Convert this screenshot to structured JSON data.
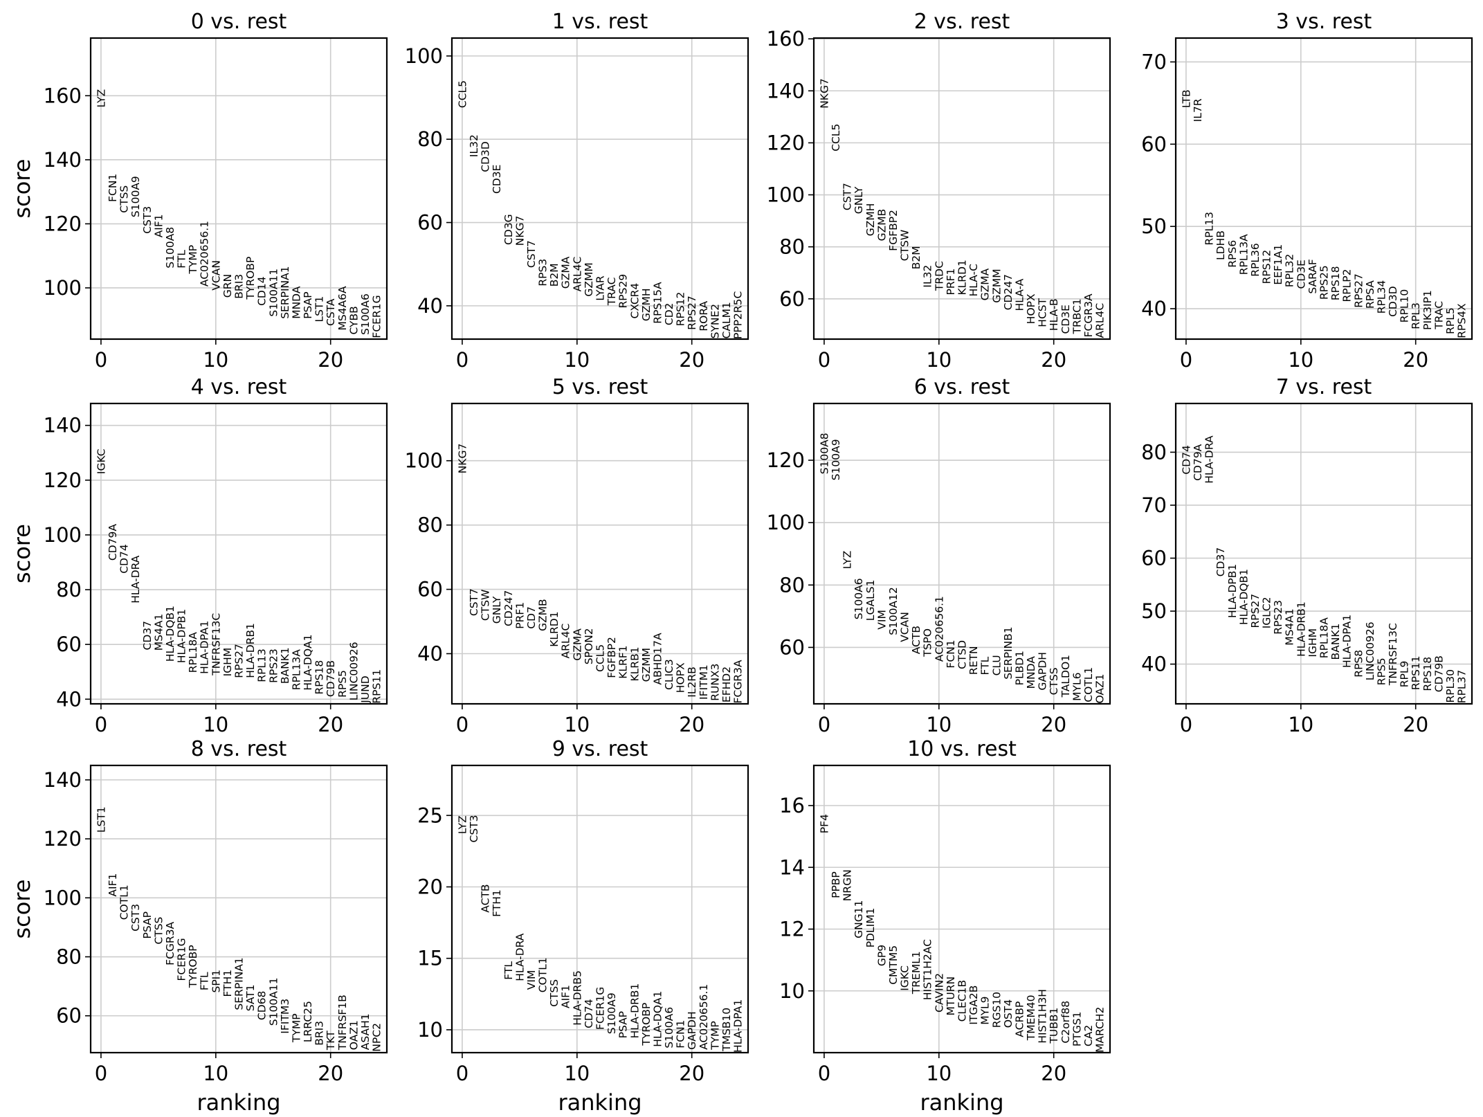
{
  "figure": {
    "xlabel": "ranking",
    "ylabel": "score"
  },
  "chart_data": [
    {
      "type": "scatter",
      "title": "0 vs. rest",
      "xlabel": "",
      "ylabel": "score",
      "xlim": [
        -0.9,
        24.9
      ],
      "ylim": [
        84,
        178
      ],
      "xticks": [
        0,
        10,
        20
      ],
      "yticks": [
        100,
        120,
        140,
        160
      ],
      "grid": true,
      "genes": [
        "LYZ",
        "FCN1",
        "CTSS",
        "S100A9",
        "CST3",
        "AIF1",
        "S100A8",
        "FTL",
        "TYMP",
        "AC020656.1",
        "VCAN",
        "GRN",
        "BRI3",
        "TYROBP",
        "CD14",
        "S100A11",
        "SERPINA1",
        "MNDA",
        "PSAP",
        "LST1",
        "CSTA",
        "MS4A6A",
        "CYBB",
        "S100A6",
        "FCER1G"
      ],
      "scores": [
        156.3,
        126.8,
        123.4,
        122.0,
        116.9,
        115.7,
        106.1,
        106.1,
        104.4,
        100.4,
        99.2,
        96.9,
        96.6,
        96.4,
        94.4,
        91.0,
        90.3,
        90.3,
        90.3,
        89.3,
        88.1,
        86.7,
        85.4,
        85.3,
        84.3
      ]
    },
    {
      "type": "scatter",
      "title": "1 vs. rest",
      "xlabel": "",
      "ylabel": "",
      "xlim": [
        -0.9,
        24.9
      ],
      "ylim": [
        32,
        104.3
      ],
      "xticks": [
        0,
        10,
        20
      ],
      "yticks": [
        40,
        60,
        80,
        100
      ],
      "grid": true,
      "genes": [
        "CCL5",
        "IL32",
        "CD3D",
        "CD3E",
        "CD3G",
        "NKG7",
        "CST7",
        "RPS3",
        "B2M",
        "GZMA",
        "ARL4C",
        "GZMM",
        "LYAR",
        "TRAC",
        "RPS29",
        "CXCR4",
        "GZMH",
        "RPS15A",
        "CD2",
        "RPS12",
        "RPS27",
        "RORA",
        "SYNE2",
        "CALM1",
        "PPP2R5C"
      ],
      "scores": [
        87.5,
        75.7,
        72.1,
        66.9,
        54.6,
        54.4,
        49.1,
        44.7,
        44.6,
        44.1,
        43.4,
        42.2,
        41.2,
        40.1,
        39.4,
        36.9,
        36.3,
        35.7,
        35.3,
        35.1,
        34.2,
        33.9,
        32.1,
        32.1,
        32.0
      ]
    },
    {
      "type": "scatter",
      "title": "2 vs. rest",
      "xlabel": "",
      "ylabel": "",
      "xlim": [
        -0.9,
        24.9
      ],
      "ylim": [
        44.5,
        160.3
      ],
      "xticks": [
        0,
        10,
        20
      ],
      "yticks": [
        60,
        80,
        100,
        120,
        140,
        160
      ],
      "grid": true,
      "genes": [
        "NKG7",
        "CCL5",
        "CST7",
        "GNLY",
        "GZMH",
        "GZMB",
        "FGFBP2",
        "CTSW",
        "B2M",
        "IL32",
        "TRDC",
        "PRF1",
        "KLRD1",
        "HLA-C",
        "GZMA",
        "GZMM",
        "CD247",
        "HLA-A",
        "HOPX",
        "HCST",
        "HLA-B",
        "CD3E",
        "TRBC1",
        "FCGR3A",
        "ARL4C"
      ],
      "scores": [
        133.2,
        116.7,
        94.0,
        92.6,
        84.1,
        82.2,
        78.4,
        74.5,
        71.3,
        64.3,
        63.1,
        61.4,
        61.4,
        60.9,
        59.3,
        58.4,
        55.6,
        55.3,
        50.3,
        49.1,
        47.7,
        46.5,
        46.5,
        45.2,
        44.9
      ]
    },
    {
      "type": "scatter",
      "title": "3 vs. rest",
      "xlabel": "",
      "ylabel": "",
      "xlim": [
        -0.9,
        24.9
      ],
      "ylim": [
        36.3,
        72.9
      ],
      "xticks": [
        0,
        10,
        20
      ],
      "yticks": [
        40,
        50,
        60,
        70
      ],
      "grid": true,
      "genes": [
        "LTB",
        "IL7R",
        "RPL13",
        "LDHB",
        "RPS6",
        "RPL13A",
        "RPL36",
        "RPS12",
        "EEF1A1",
        "RPL32",
        "CD3E",
        "SARAF",
        "RPS25",
        "RPS18",
        "RPLP2",
        "RPS27",
        "RPSA",
        "RPL34",
        "CD3D",
        "RPL10",
        "RPL3",
        "PIK3IP1",
        "TRAC",
        "RPL5",
        "RPS4X"
      ],
      "scores": [
        64.4,
        62.7,
        47.7,
        45.9,
        45.0,
        44.1,
        43.9,
        43.0,
        42.9,
        42.6,
        42.4,
        41.8,
        41.1,
        41.0,
        40.8,
        40.1,
        40.0,
        39.4,
        39.0,
        38.3,
        37.5,
        37.4,
        37.5,
        36.9,
        36.4
      ]
    },
    {
      "type": "scatter",
      "title": "4 vs. rest",
      "xlabel": "",
      "ylabel": "score",
      "xlim": [
        -0.9,
        24.9
      ],
      "ylim": [
        38.3,
        148
      ],
      "xticks": [
        0,
        10,
        20
      ],
      "yticks": [
        40,
        60,
        80,
        100,
        120,
        140
      ],
      "grid": true,
      "genes": [
        "IGKC",
        "CD79A",
        "CD74",
        "HLA-DRA",
        "CD37",
        "MS4A1",
        "HLA-DQB1",
        "HLA-DPB1",
        "RPL18A",
        "HLA-DPA1",
        "TNFRSF13C",
        "IGHM",
        "RPS27",
        "HLA-DRB1",
        "RPL13",
        "RPS23",
        "BANK1",
        "RPL13A",
        "HLA-DQA1",
        "RPS18",
        "CD79B",
        "RPS5",
        "LINC00926",
        "JUND",
        "RPS11"
      ],
      "scores": [
        122.2,
        90.6,
        85.9,
        75.0,
        57.9,
        57.7,
        53.7,
        53.2,
        49.6,
        49.2,
        48.7,
        48.3,
        47.7,
        47.7,
        46.2,
        45.9,
        45.6,
        43.3,
        43.2,
        41.7,
        40.8,
        40.6,
        39.5,
        38.6,
        38.4
      ]
    },
    {
      "type": "scatter",
      "title": "5 vs. rest",
      "xlabel": "",
      "ylabel": "",
      "xlim": [
        -0.9,
        24.9
      ],
      "ylim": [
        24.4,
        117.8
      ],
      "xticks": [
        0,
        10,
        20
      ],
      "yticks": [
        40,
        60,
        80,
        100
      ],
      "grid": true,
      "genes": [
        "NKG7",
        "CST7",
        "CTSW",
        "GNLY",
        "CD247",
        "PRF1",
        "CD7",
        "GZMB",
        "KLRD1",
        "ARL4C",
        "GZMA",
        "SPON2",
        "CCL5",
        "FGFBP2",
        "KLRF1",
        "KLRB1",
        "GZMM",
        "ABHD17A",
        "CLIC3",
        "HOPX",
        "IL2RB",
        "IFITM1",
        "RUNX3",
        "EFHD2",
        "FCGR3A"
      ],
      "scores": [
        96.0,
        51.7,
        50.2,
        49.3,
        48.5,
        47.7,
        47.7,
        47.0,
        42.1,
        38.5,
        37.8,
        36.6,
        34.3,
        32.4,
        32.2,
        31.4,
        31.2,
        30.3,
        28.7,
        27.8,
        26.4,
        25.7,
        25.3,
        24.8,
        24.5
      ]
    },
    {
      "type": "scatter",
      "title": "6 vs. rest",
      "xlabel": "",
      "ylabel": "",
      "xlim": [
        -0.9,
        24.9
      ],
      "ylim": [
        41.9,
        138.2
      ],
      "xticks": [
        0,
        10,
        20
      ],
      "yticks": [
        60,
        80,
        100,
        120
      ],
      "grid": true,
      "genes": [
        "S100A8",
        "S100A9",
        "LYZ",
        "S100A6",
        "LGALS1",
        "VIM",
        "S100A12",
        "VCAN",
        "ACTB",
        "TSPO",
        "AC020656.1",
        "FCN1",
        "CTSD",
        "RETN",
        "FTL",
        "CLU",
        "SERPINB1",
        "PLBD1",
        "MNDA",
        "GAPDH",
        "CTSS",
        "TALDO1",
        "MYL6",
        "COTL1",
        "OAZ1"
      ],
      "scores": [
        115.5,
        113.5,
        85.1,
        68.9,
        68.5,
        65.7,
        63.9,
        61.7,
        57.8,
        57.0,
        55.4,
        53.3,
        53.0,
        51.2,
        51.1,
        50.9,
        49.7,
        47.8,
        46.7,
        46.2,
        44.7,
        44.0,
        42.8,
        42.4,
        42.0
      ]
    },
    {
      "type": "scatter",
      "title": "7 vs. rest",
      "xlabel": "",
      "ylabel": "",
      "xlim": [
        -0.9,
        24.9
      ],
      "ylim": [
        32.5,
        89.2
      ],
      "xticks": [
        0,
        10,
        20
      ],
      "yticks": [
        40,
        50,
        60,
        70,
        80
      ],
      "grid": true,
      "genes": [
        "CD74",
        "CD79A",
        "HLA-DRA",
        "CD37",
        "HLA-DPB1",
        "HLA-DQB1",
        "RPS27",
        "IGLC2",
        "RPS23",
        "MS4A1",
        "HLA-DRB1",
        "IGHM",
        "RPL18A",
        "BANK1",
        "HLA-DPA1",
        "RPS8",
        "LINC00926",
        "RPS5",
        "TNFRSF13C",
        "RPL9",
        "RPS11",
        "RPS18",
        "CD79B",
        "RPL30",
        "RPL37"
      ],
      "scores": [
        75.8,
        74.6,
        74.1,
        56.5,
        48.7,
        47.4,
        46.8,
        46.7,
        45.6,
        43.5,
        41.4,
        41.3,
        41.1,
        40.8,
        39.3,
        37.5,
        36.9,
        36.0,
        36.0,
        35.6,
        35.1,
        34.9,
        34.7,
        32.7,
        32.6
      ]
    },
    {
      "type": "scatter",
      "title": "8 vs. rest",
      "xlabel": "ranking",
      "ylabel": "score",
      "xlim": [
        -0.9,
        24.9
      ],
      "ylim": [
        47.5,
        144.9
      ],
      "xticks": [
        0,
        10,
        20
      ],
      "yticks": [
        60,
        80,
        100,
        120,
        140
      ],
      "grid": true,
      "genes": [
        "LST1",
        "AIF1",
        "COTL1",
        "CST3",
        "PSAP",
        "CTSS",
        "FCGR3A",
        "FCER1G",
        "TYROBP",
        "FTL",
        "SPI1",
        "FTH1",
        "SERPINA1",
        "SAT1",
        "CD68",
        "S100A11",
        "IFITM3",
        "TYMP",
        "LRRC25",
        "BRI3",
        "TKT",
        "TNFRSF1B",
        "OAZ1",
        "ASAH1",
        "NPC2"
      ],
      "scores": [
        122.1,
        100.4,
        92.5,
        88.6,
        86.1,
        84.2,
        77.1,
        71.8,
        69.5,
        68.6,
        67.8,
        66.4,
        61.9,
        61.5,
        58.5,
        56.6,
        53.9,
        51.0,
        51.0,
        49.9,
        48.4,
        48.4,
        48.4,
        48.4,
        47.8
      ]
    },
    {
      "type": "scatter",
      "title": "9 vs. rest",
      "xlabel": "ranking",
      "ylabel": "",
      "xlim": [
        -0.9,
        24.9
      ],
      "ylim": [
        8.4,
        28.5
      ],
      "xticks": [
        0,
        10,
        20
      ],
      "yticks": [
        10,
        15,
        20,
        25
      ],
      "grid": true,
      "genes": [
        "LYZ",
        "CST3",
        "ACTB",
        "FTH1",
        "FTL",
        "HLA-DRA",
        "VIM",
        "COTL1",
        "CTSS",
        "AIF1",
        "HLA-DRB5",
        "CD74",
        "FCER1G",
        "S100A9",
        "PSAP",
        "HLA-DRB1",
        "TYROBP",
        "HLA-DQA1",
        "S100A6",
        "FCN1",
        "GAPDH",
        "AC020656.1",
        "TYMP",
        "TMSB10",
        "HLA-DPA1"
      ],
      "scores": [
        23.7,
        23.1,
        18.2,
        17.9,
        13.5,
        13.4,
        12.8,
        12.6,
        11.6,
        11.5,
        10.3,
        10.1,
        10.0,
        9.7,
        9.4,
        9.4,
        8.9,
        8.8,
        8.7,
        8.7,
        8.6,
        8.6,
        8.6,
        8.5,
        8.4
      ]
    },
    {
      "type": "scatter",
      "title": "10 vs. rest",
      "xlabel": "ranking",
      "ylabel": "",
      "xlim": [
        -0.9,
        24.9
      ],
      "ylim": [
        8.0,
        17.3
      ],
      "xticks": [
        0,
        10,
        20
      ],
      "yticks": [
        10,
        12,
        14,
        16
      ],
      "grid": true,
      "genes": [
        "PF4",
        "PPBP",
        "NRGN",
        "GNG11",
        "PDLIM1",
        "GP9",
        "CMTM5",
        "IGKC",
        "TREML1",
        "HIST1H2AC",
        "CAVIN2",
        "MTURN",
        "CLEC1B",
        "ITGA2B",
        "MYL9",
        "RGS10",
        "OST4",
        "ACRBP",
        "TMEM40",
        "HIST1H3H",
        "TUBB1",
        "C2orf88",
        "PTGS1",
        "CA2",
        "MARCH2"
      ],
      "scores": [
        15.1,
        13.0,
        12.9,
        11.7,
        11.4,
        10.8,
        10.2,
        10.0,
        9.9,
        9.7,
        9.3,
        9.2,
        9.0,
        8.9,
        8.9,
        8.8,
        8.8,
        8.5,
        8.4,
        8.3,
        8.3,
        8.3,
        8.2,
        8.2,
        8.0
      ]
    }
  ]
}
